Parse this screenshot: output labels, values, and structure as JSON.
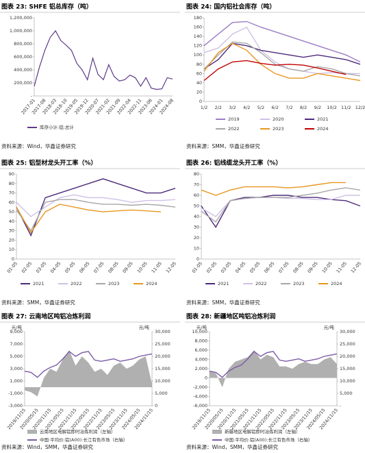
{
  "chart_data": [
    {
      "type": "line",
      "title": "图表 23: SHFE 铝总库存（吨）",
      "source": "资料来源：Wind，华鑫证券研究",
      "categories": [
        "2017-01",
        null,
        "2017-08",
        null,
        "2018-03",
        null,
        "2018-10",
        null,
        "2019-05",
        null,
        "2019-12",
        null,
        "2020-07",
        null,
        "2021-02",
        null,
        "2021-09",
        null,
        "2022-04",
        null,
        "2022-11",
        null,
        "2023-06",
        null,
        "2024-01",
        null,
        "2024-08"
      ],
      "series": [
        {
          "name": "库存小计:铝:总计",
          "color": "#5b3a87",
          "values": [
            150000,
            450000,
            700000,
            900000,
            1000000,
            850000,
            780000,
            700000,
            500000,
            400000,
            250000,
            580000,
            330000,
            250000,
            480000,
            300000,
            230000,
            250000,
            320000,
            280000,
            150000,
            280000,
            120000,
            100000,
            110000,
            280000,
            260000
          ]
        }
      ],
      "ylim": [
        0,
        1200000
      ],
      "yticks": [
        {
          "value": 0,
          "label": "-"
        },
        {
          "value": 200000,
          "label": "200,000"
        },
        {
          "value": 400000,
          "label": "400,000"
        },
        {
          "value": 600000,
          "label": "600,000"
        },
        {
          "value": 800000,
          "label": "800,000"
        },
        {
          "value": 1000000,
          "label": "1,000,000"
        },
        {
          "value": 1200000,
          "label": "1,200,000"
        }
      ]
    },
    {
      "type": "line",
      "title": "图表 24: 国内铝社会库存（吨）",
      "source": "资料来源：SMM，华鑫证券研究",
      "categories": [
        "1/2",
        "2/2",
        "3/2",
        "4/2",
        "5/2",
        "6/2",
        "7/2",
        "8/2",
        "9/2",
        "10/2",
        "11/2",
        "12/2"
      ],
      "series": [
        {
          "name": "2019",
          "color": "#9a7cc4",
          "values": [
            120,
            145,
            170,
            172,
            160,
            150,
            140,
            130,
            120,
            110,
            100,
            85
          ]
        },
        {
          "name": "2020",
          "color": "#cfc0e6",
          "values": [
            105,
            115,
            145,
            160,
            110,
            85,
            70,
            65,
            60,
            62,
            60,
            60
          ]
        },
        {
          "name": "2021",
          "color": "#4b2a7b",
          "values": [
            70,
            90,
            125,
            120,
            110,
            105,
            100,
            95,
            100,
            95,
            90,
            80
          ]
        },
        {
          "name": "2022",
          "color": "#a6a6a6",
          "values": [
            70,
            100,
            128,
            125,
            105,
            80,
            70,
            65,
            75,
            70,
            60,
            55
          ]
        },
        {
          "name": "2023",
          "color": "#e8961e",
          "values": [
            65,
            105,
            125,
            110,
            80,
            60,
            50,
            50,
            60,
            55,
            50,
            45
          ]
        },
        {
          "name": "2024",
          "color": "#c00000",
          "values": [
            45,
            70,
            85,
            88,
            82,
            78,
            80,
            78,
            72,
            65,
            58,
            null
          ]
        }
      ],
      "ylim": [
        0,
        180
      ],
      "yticks": [
        0,
        20,
        40,
        60,
        80,
        100,
        120,
        140,
        160,
        180
      ]
    },
    {
      "type": "line",
      "title": "图表 25: 铝型材龙头开工率（%）",
      "source": "资料来源：SMM，华鑫证券研究",
      "categories": [
        "01-05",
        "02-05",
        "03-05",
        "04-05",
        "05-05",
        "06-05",
        "07-05",
        "08-05",
        "09-05",
        "10-05",
        "11-05",
        "12-05"
      ],
      "series": [
        {
          "name": "2021",
          "color": "#4b2a7b",
          "values": [
            55,
            25,
            65,
            70,
            75,
            80,
            85,
            80,
            75,
            70,
            70,
            75
          ]
        },
        {
          "name": "2022",
          "color": "#cfc0e6",
          "values": [
            60,
            45,
            55,
            65,
            68,
            65,
            65,
            63,
            60,
            62,
            62,
            63
          ]
        },
        {
          "name": "2023",
          "color": "#a6a6a6",
          "values": [
            52,
            30,
            60,
            63,
            63,
            60,
            58,
            58,
            57,
            58,
            57,
            55
          ]
        },
        {
          "name": "2024",
          "color": "#e8961e",
          "values": [
            55,
            28,
            50,
            58,
            55,
            52,
            50,
            51,
            52,
            51,
            50,
            null
          ]
        }
      ],
      "ylim": [
        0,
        90
      ],
      "yticks": [
        0,
        10,
        20,
        30,
        40,
        50,
        60,
        70,
        80,
        90
      ]
    },
    {
      "type": "line",
      "title": "图表 26: 铝线缆龙头开工率（%）",
      "source": "资料来源：SMM，华鑫证券研究",
      "categories": [
        "01-05",
        "02-05",
        "03-05",
        "04-05",
        "05-05",
        "06-05",
        "07-05",
        "08-05",
        "09-05",
        "10-05",
        "11-05",
        "12-05"
      ],
      "series": [
        {
          "name": "2021",
          "color": "#4b2a7b",
          "values": [
            50,
            30,
            55,
            58,
            58,
            60,
            60,
            58,
            58,
            56,
            55,
            50
          ]
        },
        {
          "name": "2022",
          "color": "#cfc0e6",
          "values": [
            48,
            40,
            55,
            57,
            58,
            58,
            57,
            57,
            56,
            56,
            60,
            60
          ]
        },
        {
          "name": "2023",
          "color": "#a6a6a6",
          "values": [
            45,
            35,
            55,
            57,
            58,
            58,
            58,
            60,
            62,
            65,
            67,
            65
          ]
        },
        {
          "name": "2024",
          "color": "#e8961e",
          "values": [
            65,
            60,
            65,
            68,
            68,
            68,
            67,
            68,
            70,
            72,
            72,
            null
          ]
        }
      ],
      "ylim": [
        0,
        80
      ],
      "yticks": [
        0,
        10,
        20,
        30,
        40,
        50,
        60,
        70,
        80
      ]
    },
    {
      "type": "combo",
      "title": "图表 27: 云南地区吨铝冶炼利润",
      "source": "资料来源：Wind，SMM，华鑫证券研究",
      "y_label": "元/吨",
      "y2_label": "元/吨",
      "categories": [
        "2019/11/15",
        null,
        "2020/05/15",
        null,
        "2020/11/15",
        null,
        "2021/05/15",
        null,
        "2021/11/15",
        null,
        "2022/05/15",
        null,
        "2022/11/15",
        null,
        "2023/05/15",
        null,
        "2023/11/15",
        null,
        "2024/05/15",
        null,
        "2024/11/15"
      ],
      "series": [
        {
          "name": "云南地区电解铝即时冶炼利润（左轴）",
          "type": "area",
          "color": "#b0b0b0",
          "values": [
            -500,
            -800,
            -1500,
            1500,
            3000,
            2500,
            4500,
            6000,
            3500,
            5000,
            4000,
            2500,
            3000,
            2000,
            3500,
            4000,
            3000,
            3500,
            4500,
            5000,
            500
          ]
        },
        {
          "name": "中国:平均价:铝(A00):长江有色市场（右轴）",
          "type": "line",
          "axis": "y2",
          "color": "#7b5aa6",
          "values": [
            14000,
            13500,
            11500,
            14000,
            15500,
            16500,
            19000,
            22000,
            20000,
            21500,
            22000,
            18500,
            18000,
            18500,
            19000,
            18000,
            18500,
            19000,
            20000,
            20500,
            21000
          ]
        }
      ],
      "ylim": [
        -3000,
        9000
      ],
      "yticks": [
        {
          "value": -3000,
          "label": "-3,000"
        },
        {
          "value": -1000,
          "label": "-1,000"
        },
        {
          "value": 1000,
          "label": "1,000"
        },
        {
          "value": 3000,
          "label": "3,000"
        },
        {
          "value": 5000,
          "label": "5,000"
        },
        {
          "value": 7000,
          "label": "7,000"
        },
        {
          "value": 9000,
          "label": "9,000"
        }
      ],
      "y2lim": [
        0,
        30000
      ],
      "y2ticks": [
        0,
        {
          "value": 5000,
          "label": "5,000"
        },
        {
          "value": 10000,
          "label": "10,000"
        },
        {
          "value": 15000,
          "label": "15,000"
        },
        {
          "value": 20000,
          "label": "20,000"
        },
        {
          "value": 25000,
          "label": "25,000"
        },
        {
          "value": 30000,
          "label": "30,000"
        }
      ]
    },
    {
      "type": "combo",
      "title": "图表 28: 新疆地区吨铝冶炼利润",
      "source": "资料来源：Wind，SMM，华鑫证券研究",
      "y_label": "元/吨",
      "y2_label": "元/吨",
      "categories": [
        "2019/11/15",
        null,
        "2020/05/15",
        null,
        "2020/11/15",
        null,
        "2021/05/15",
        null,
        "2021/11/15",
        null,
        "2022/05/15",
        null,
        "2022/11/15",
        null,
        "2023/05/15",
        null,
        "2023/11/15",
        null,
        "2024/05/15",
        null,
        "2024/11/15"
      ],
      "series": [
        {
          "name": "新疆地区电解铝即时冶炼利润（左轴）",
          "type": "area",
          "color": "#b0b0b0",
          "values": [
            1500,
            1000,
            -2000,
            2000,
            3500,
            4000,
            4500,
            6000,
            4000,
            5000,
            4500,
            2500,
            2500,
            2000,
            3000,
            3500,
            3000,
            3000,
            4000,
            4500,
            3000
          ]
        },
        {
          "name": "中国:平均价:铝(A00):长江有色市场（右轴）",
          "type": "line",
          "axis": "y2",
          "color": "#7b5aa6",
          "values": [
            14000,
            13500,
            11500,
            14000,
            15500,
            16500,
            19000,
            22000,
            20000,
            21500,
            22000,
            18500,
            18000,
            18500,
            19000,
            18000,
            18500,
            19000,
            20000,
            20500,
            21000
          ]
        }
      ],
      "ylim": [
        -6000,
        10000
      ],
      "yticks": [
        {
          "value": -6000,
          "label": "-6,000"
        },
        {
          "value": -4000,
          "label": "-4,000"
        },
        {
          "value": -2000,
          "label": "-2,000"
        },
        0,
        {
          "value": 2000,
          "label": "2,000"
        },
        {
          "value": 4000,
          "label": "4,000"
        },
        {
          "value": 6000,
          "label": "6,000"
        },
        {
          "value": 8000,
          "label": "8,000"
        },
        {
          "value": 10000,
          "label": "10,000"
        }
      ],
      "y2lim": [
        0,
        30000
      ],
      "y2ticks": [
        {
          "value": 0,
          "label": "-"
        },
        {
          "value": 5000,
          "label": "5,000"
        },
        {
          "value": 10000,
          "label": "10,000"
        },
        {
          "value": 15000,
          "label": "15,000"
        },
        {
          "value": 20000,
          "label": "20,000"
        },
        {
          "value": 25000,
          "label": "25,000"
        },
        {
          "value": 30000,
          "label": "30,000"
        }
      ]
    }
  ]
}
